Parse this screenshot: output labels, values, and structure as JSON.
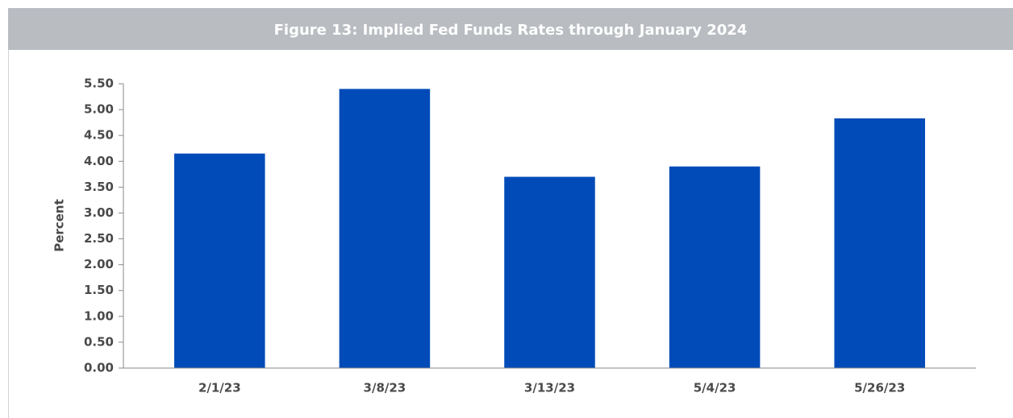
{
  "chart_data": {
    "type": "bar",
    "title": "Figure 13: Implied Fed Funds Rates through January 2024",
    "y_label": "Percent",
    "categories": [
      "2/1/23",
      "3/8/23",
      "3/13/23",
      "5/4/23",
      "5/26/23"
    ],
    "values": [
      4.15,
      5.4,
      3.7,
      3.9,
      4.83
    ],
    "color": "#004bb8",
    "ylim": [
      0,
      5.5
    ],
    "yticks": [
      {
        "value": 0,
        "label": "0.00"
      },
      {
        "value": 0.5,
        "label": "0.50"
      },
      {
        "value": 1,
        "label": "1.00"
      },
      {
        "value": 1.5,
        "label": "1.50"
      },
      {
        "value": 2,
        "label": "2.00"
      },
      {
        "value": 2.5,
        "label": "2.50"
      },
      {
        "value": 3,
        "label": "3.00"
      },
      {
        "value": 3.5,
        "label": "3.50"
      },
      {
        "value": 4,
        "label": "4.00"
      },
      {
        "value": 4.5,
        "label": "4.50"
      },
      {
        "value": 5,
        "label": "5.00"
      },
      {
        "value": 5.5,
        "label": "5.50"
      }
    ],
    "grid": false
  }
}
